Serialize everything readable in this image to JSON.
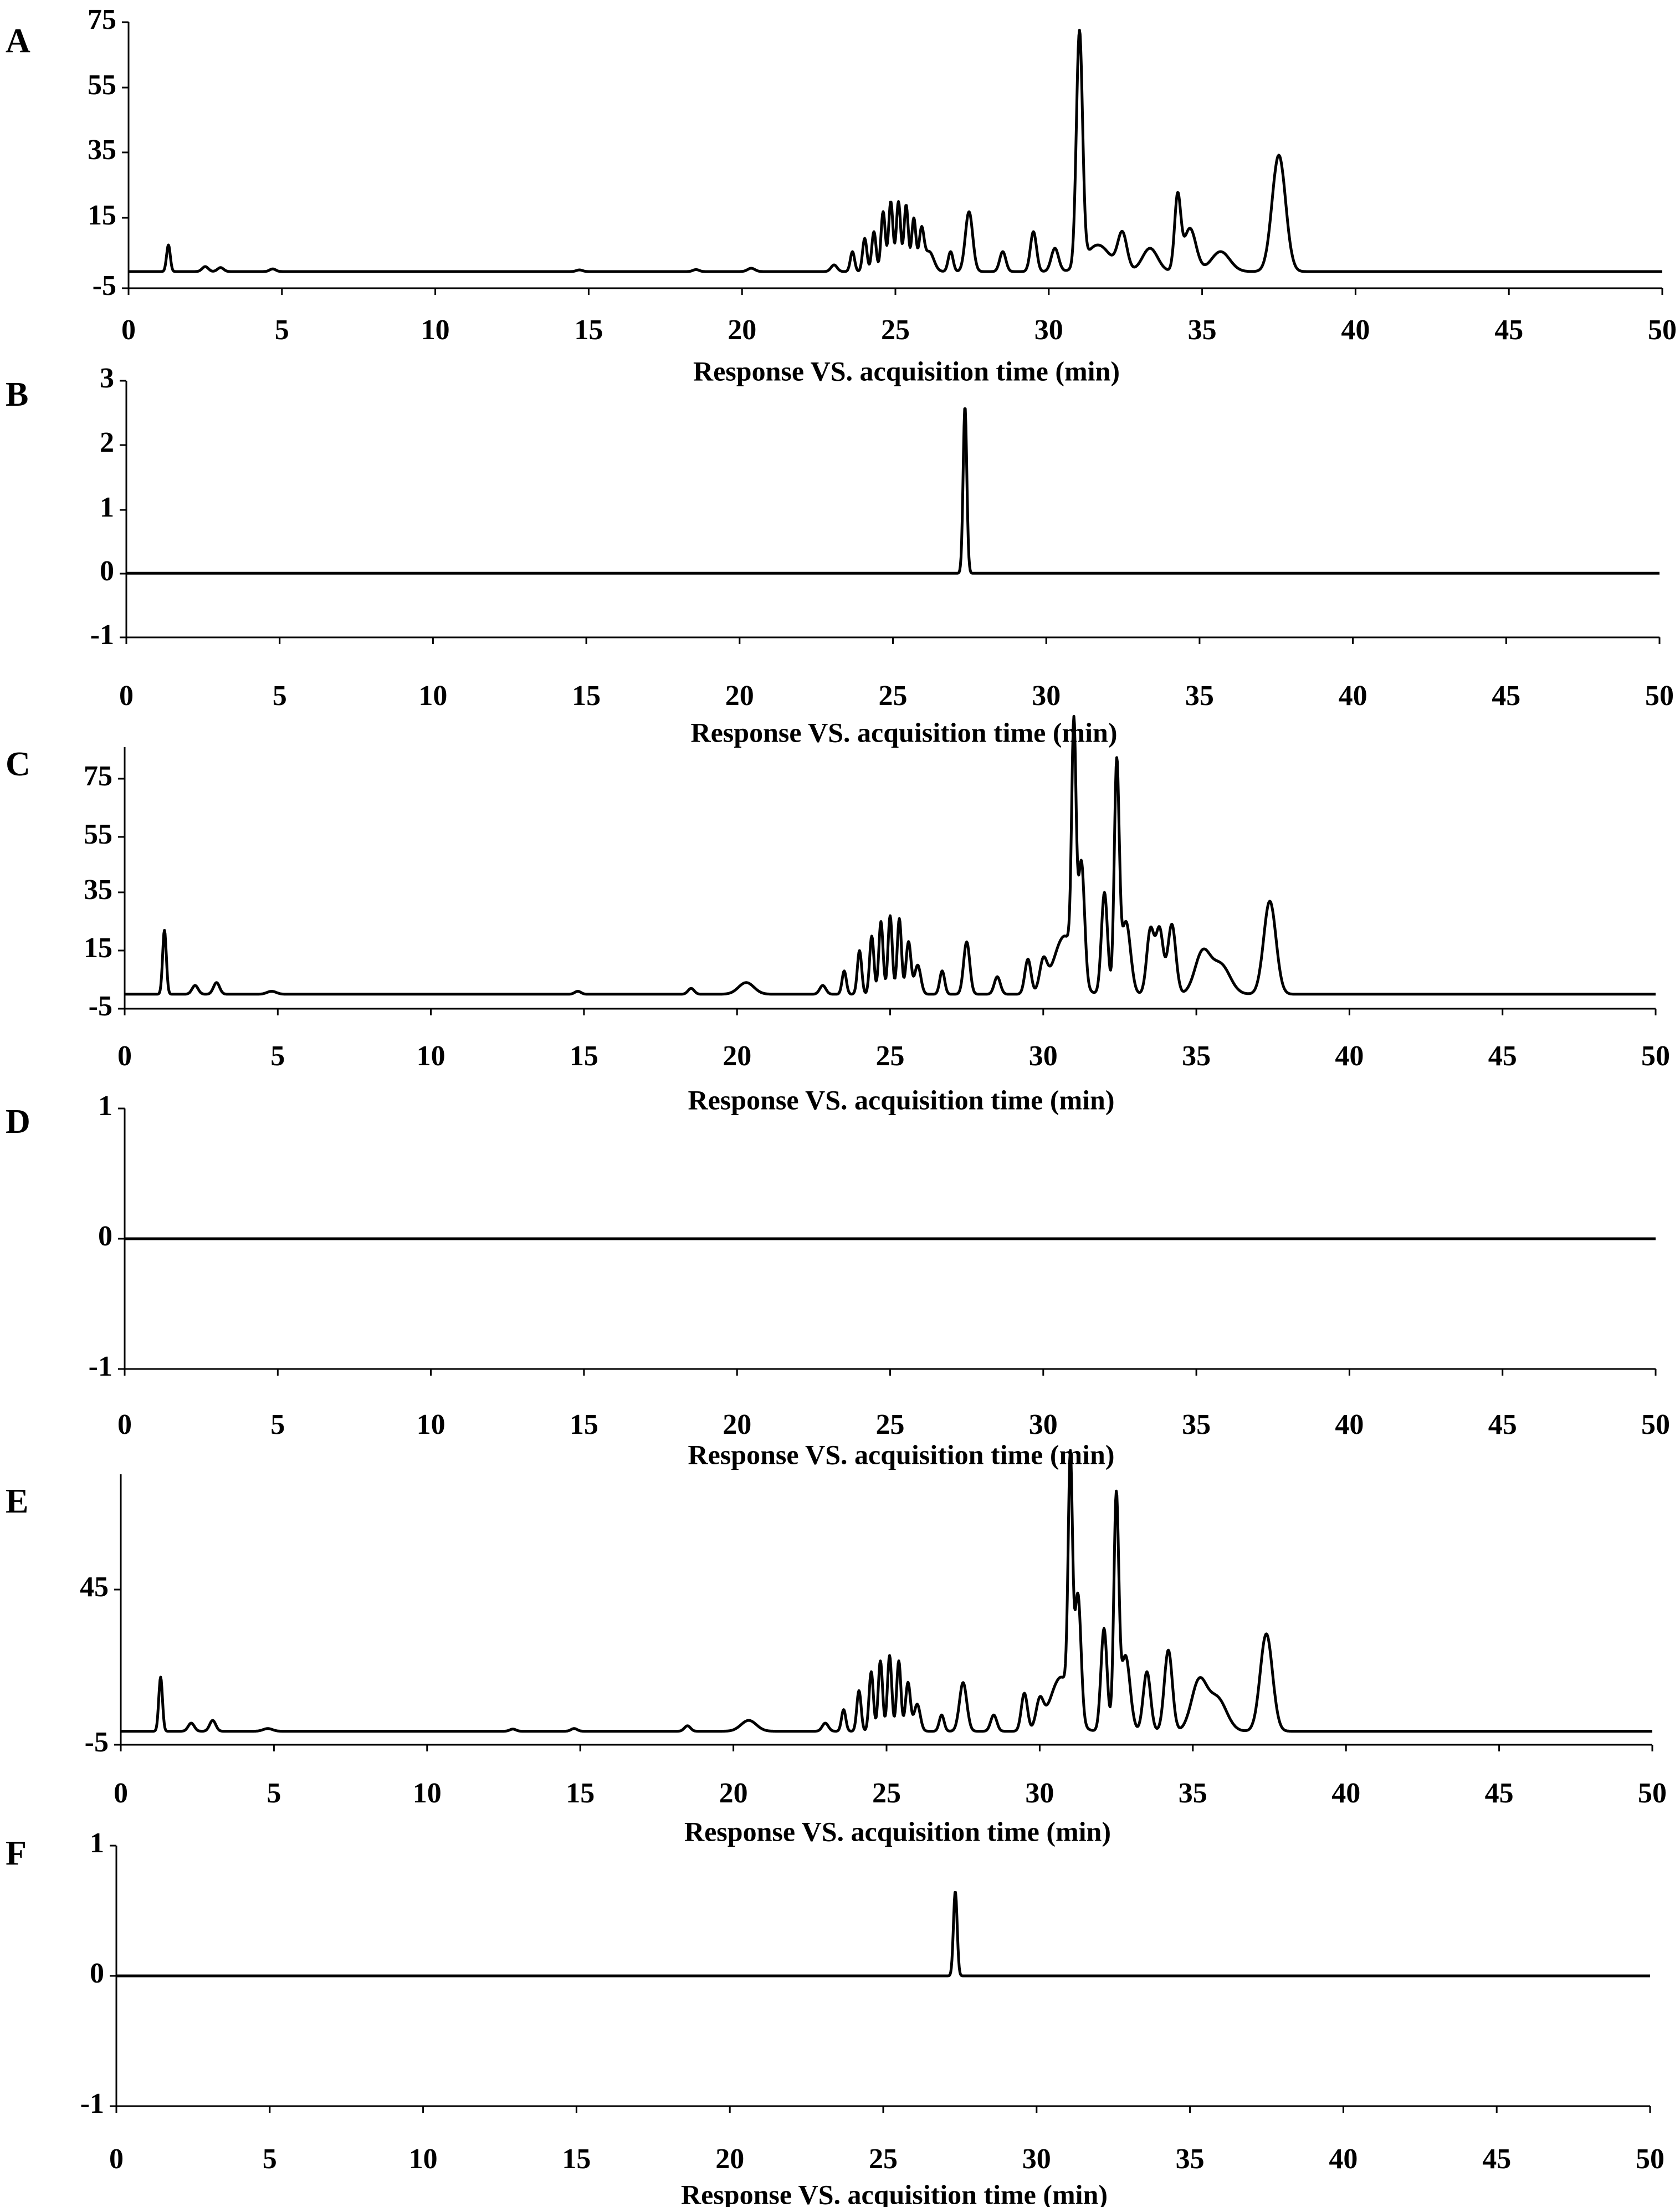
{
  "chart_data": [
    {
      "panel": "A",
      "type": "line",
      "xlabel": "Response VS. acquisition time (min)",
      "xlim": [
        0,
        50
      ],
      "ylim": [
        -5,
        75
      ],
      "xticks": [
        "0",
        "5",
        "10",
        "15",
        "20",
        "25",
        "30",
        "35",
        "40",
        "45",
        "50"
      ],
      "yticks": [
        "75",
        "55",
        "35",
        "15",
        "-5"
      ],
      "baseline": 0,
      "peaks": [
        [
          1.3,
          8,
          0.06
        ],
        [
          2.5,
          1.5,
          0.1
        ],
        [
          3.0,
          1.2,
          0.1
        ],
        [
          4.7,
          0.8,
          0.1
        ],
        [
          14.7,
          0.5,
          0.1
        ],
        [
          18.5,
          0.6,
          0.1
        ],
        [
          20.3,
          1,
          0.12
        ],
        [
          23.0,
          2,
          0.1
        ],
        [
          23.6,
          6,
          0.07
        ],
        [
          24.0,
          10,
          0.07
        ],
        [
          24.3,
          12,
          0.07
        ],
        [
          24.6,
          18,
          0.07
        ],
        [
          24.85,
          21,
          0.07
        ],
        [
          25.1,
          21,
          0.07
        ],
        [
          25.35,
          20,
          0.07
        ],
        [
          25.6,
          16,
          0.07
        ],
        [
          25.85,
          12,
          0.08
        ],
        [
          26.1,
          6,
          0.15
        ],
        [
          26.8,
          6,
          0.08
        ],
        [
          27.4,
          18,
          0.12
        ],
        [
          28.5,
          6,
          0.1
        ],
        [
          29.5,
          12,
          0.1
        ],
        [
          30.2,
          7,
          0.12
        ],
        [
          31.0,
          70,
          0.1
        ],
        [
          31.6,
          8,
          0.4
        ],
        [
          32.4,
          11,
          0.15
        ],
        [
          33.3,
          7,
          0.25
        ],
        [
          34.2,
          22,
          0.1
        ],
        [
          34.6,
          13,
          0.2
        ],
        [
          35.6,
          6,
          0.3
        ],
        [
          37.5,
          35,
          0.22
        ]
      ]
    },
    {
      "panel": "B",
      "type": "line",
      "xlabel": "Response VS. acquisition time (min)",
      "xlim": [
        0,
        50
      ],
      "ylim": [
        -1,
        3
      ],
      "xticks": [
        "0",
        "5",
        "10",
        "15",
        "20",
        "25",
        "30",
        "35",
        "40",
        "45",
        "50"
      ],
      "yticks": [
        "3",
        "2",
        "1",
        "0",
        "-1"
      ],
      "baseline": 0,
      "peaks": [
        [
          27.35,
          2.6,
          0.06
        ]
      ]
    },
    {
      "panel": "C",
      "type": "line",
      "xlabel": "Response VS. acquisition time (min)",
      "xlim": [
        0,
        50
      ],
      "ylim": [
        -5,
        85
      ],
      "xticks": [
        "0",
        "5",
        "10",
        "15",
        "20",
        "25",
        "30",
        "35",
        "40",
        "45",
        "50"
      ],
      "yticks": [
        "75",
        "55",
        "35",
        "15",
        "-5"
      ],
      "baseline": 0,
      "peaks": [
        [
          1.3,
          22,
          0.06
        ],
        [
          2.3,
          3,
          0.1
        ],
        [
          3.0,
          4,
          0.1
        ],
        [
          4.8,
          1,
          0.15
        ],
        [
          14.8,
          1,
          0.1
        ],
        [
          18.5,
          2,
          0.1
        ],
        [
          20.3,
          4,
          0.25
        ],
        [
          22.8,
          3,
          0.1
        ],
        [
          23.5,
          8,
          0.07
        ],
        [
          24.0,
          15,
          0.07
        ],
        [
          24.4,
          20,
          0.07
        ],
        [
          24.7,
          25,
          0.07
        ],
        [
          25.0,
          27,
          0.07
        ],
        [
          25.3,
          26,
          0.07
        ],
        [
          25.6,
          18,
          0.08
        ],
        [
          25.9,
          10,
          0.1
        ],
        [
          26.7,
          8,
          0.08
        ],
        [
          27.5,
          18,
          0.1
        ],
        [
          28.5,
          6,
          0.1
        ],
        [
          29.5,
          12,
          0.1
        ],
        [
          30.0,
          10,
          0.12
        ],
        [
          30.7,
          20,
          0.35
        ],
        [
          31.0,
          80,
          0.07
        ],
        [
          31.25,
          40,
          0.1
        ],
        [
          32.0,
          35,
          0.1
        ],
        [
          32.4,
          78,
          0.08
        ],
        [
          32.7,
          25,
          0.15
        ],
        [
          33.5,
          22,
          0.12
        ],
        [
          33.8,
          22,
          0.12
        ],
        [
          34.2,
          24,
          0.13
        ],
        [
          35.2,
          14,
          0.25
        ],
        [
          35.8,
          10,
          0.3
        ],
        [
          37.4,
          32,
          0.2
        ]
      ]
    },
    {
      "panel": "D",
      "type": "line",
      "xlabel": "Response VS. acquisition time (min)",
      "xlim": [
        0,
        50
      ],
      "ylim": [
        -1,
        1
      ],
      "xticks": [
        "0",
        "5",
        "10",
        "15",
        "20",
        "25",
        "30",
        "35",
        "40",
        "45",
        "50"
      ],
      "yticks": [
        "1",
        "0",
        "-1"
      ],
      "baseline": 0,
      "peaks": []
    },
    {
      "panel": "E",
      "type": "line",
      "xlabel": "Response VS. acquisition time (min)",
      "xlim": [
        0,
        50
      ],
      "ylim": [
        -5,
        95
      ],
      "xticks": [
        "0",
        "5",
        "10",
        "15",
        "20",
        "25",
        "30",
        "35",
        "40",
        "45",
        "50"
      ],
      "yticks": [
        "45",
        "-5"
      ],
      "baseline": 0,
      "peaks": [
        [
          1.3,
          20,
          0.06
        ],
        [
          2.3,
          3,
          0.1
        ],
        [
          3.0,
          4,
          0.1
        ],
        [
          4.8,
          1,
          0.15
        ],
        [
          12.8,
          0.8,
          0.1
        ],
        [
          14.8,
          1,
          0.1
        ],
        [
          18.5,
          2,
          0.1
        ],
        [
          20.5,
          4,
          0.25
        ],
        [
          23.0,
          3,
          0.1
        ],
        [
          23.6,
          8,
          0.07
        ],
        [
          24.1,
          15,
          0.07
        ],
        [
          24.5,
          22,
          0.07
        ],
        [
          24.8,
          26,
          0.07
        ],
        [
          25.1,
          28,
          0.07
        ],
        [
          25.4,
          26,
          0.07
        ],
        [
          25.7,
          18,
          0.08
        ],
        [
          26.0,
          10,
          0.1
        ],
        [
          26.8,
          6,
          0.08
        ],
        [
          27.5,
          18,
          0.12
        ],
        [
          28.5,
          6,
          0.1
        ],
        [
          29.5,
          14,
          0.1
        ],
        [
          30.0,
          10,
          0.12
        ],
        [
          30.7,
          20,
          0.35
        ],
        [
          31.0,
          88,
          0.07
        ],
        [
          31.25,
          45,
          0.1
        ],
        [
          32.1,
          38,
          0.1
        ],
        [
          32.5,
          85,
          0.08
        ],
        [
          32.8,
          28,
          0.15
        ],
        [
          33.5,
          22,
          0.12
        ],
        [
          34.2,
          30,
          0.13
        ],
        [
          35.2,
          18,
          0.25
        ],
        [
          35.8,
          12,
          0.3
        ],
        [
          37.4,
          36,
          0.2
        ]
      ]
    },
    {
      "panel": "F",
      "type": "line",
      "xlabel": "Response VS. acquisition time (min)",
      "xlim": [
        0,
        50
      ],
      "ylim": [
        -1,
        1
      ],
      "xticks": [
        "0",
        "5",
        "10",
        "15",
        "20",
        "25",
        "30",
        "35",
        "40",
        "45",
        "50"
      ],
      "yticks": [
        "1",
        "0",
        "-1"
      ],
      "baseline": 0,
      "peaks": [
        [
          27.35,
          0.65,
          0.06
        ]
      ]
    }
  ]
}
